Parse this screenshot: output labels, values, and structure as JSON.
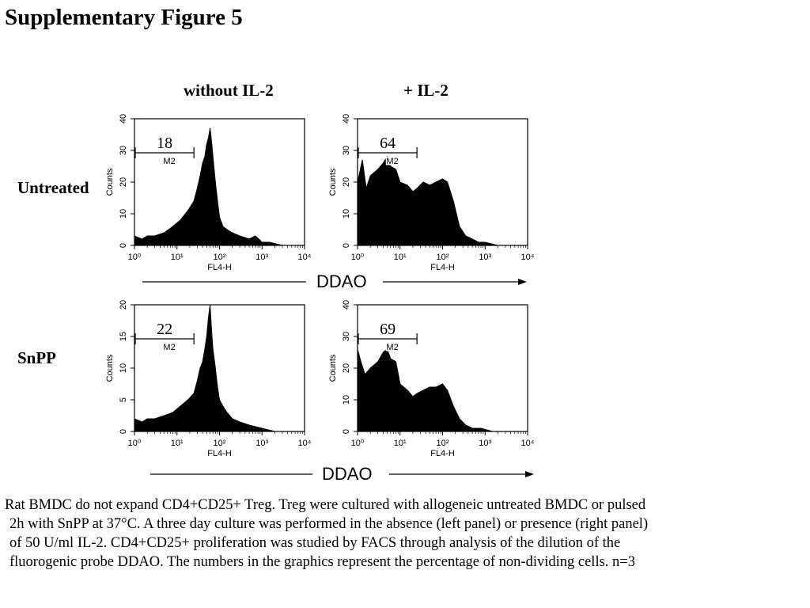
{
  "figure_title": "Supplementary Figure 5",
  "column_headers": [
    "without IL-2",
    "+ IL-2"
  ],
  "row_headers": [
    "Untreated",
    "SnPP"
  ],
  "arrow_label": "DDAO",
  "chart_data": [
    {
      "type": "area",
      "panel": "Untreated, without IL-2",
      "xlabel": "FL4-H",
      "ylabel": "Counts",
      "xscale": "log",
      "xlim": [
        1,
        10000
      ],
      "ylim": [
        0,
        40
      ],
      "x_ticks": [
        "10⁰",
        "10¹",
        "10²",
        "10³",
        "10⁴"
      ],
      "y_ticks": [
        "0",
        "10",
        "20",
        "30",
        "40"
      ],
      "gate_label": "M2",
      "gate_range": [
        1,
        25
      ],
      "value_label": "18",
      "x": [
        1,
        1.5,
        2,
        3,
        5,
        8,
        12,
        18,
        25,
        30,
        35,
        40,
        45,
        50,
        55,
        60,
        65,
        70,
        80,
        90,
        100,
        120,
        150,
        200,
        300,
        500,
        700,
        1000,
        1500,
        3000,
        10000
      ],
      "y": [
        3,
        2,
        3,
        3,
        4,
        6,
        8,
        11,
        14,
        18,
        22,
        26,
        28,
        32,
        34,
        37,
        33,
        28,
        20,
        14,
        9,
        6,
        5,
        4,
        3,
        2,
        3,
        1,
        1,
        0,
        0
      ]
    },
    {
      "type": "area",
      "panel": "Untreated, + IL-2",
      "xlabel": "FL4-H",
      "ylabel": "Counts",
      "xscale": "log",
      "xlim": [
        1,
        10000
      ],
      "ylim": [
        0,
        40
      ],
      "x_ticks": [
        "10⁰",
        "10¹",
        "10²",
        "10³",
        "10⁴"
      ],
      "y_ticks": [
        "0",
        "10",
        "20",
        "30",
        "40"
      ],
      "gate_label": "M2",
      "gate_range": [
        1,
        25
      ],
      "value_label": "64",
      "x": [
        1,
        1.3,
        1.6,
        2,
        3,
        4,
        5,
        6,
        8,
        10,
        15,
        20,
        25,
        35,
        50,
        70,
        100,
        130,
        180,
        250,
        350,
        500,
        700,
        1000,
        2000,
        10000
      ],
      "y": [
        20,
        27,
        18,
        22,
        24,
        26,
        28,
        25,
        24,
        20,
        19,
        17,
        18,
        20,
        19,
        20,
        21,
        20,
        14,
        6,
        3,
        2,
        1,
        1,
        0,
        0
      ]
    },
    {
      "type": "area",
      "panel": "SnPP, without IL-2",
      "xlabel": "FL4-H",
      "ylabel": "Counts",
      "xscale": "log",
      "xlim": [
        1,
        10000
      ],
      "ylim": [
        0,
        20
      ],
      "x_ticks": [
        "10⁰",
        "10¹",
        "10²",
        "10³",
        "10⁴"
      ],
      "y_ticks": [
        "0",
        "5",
        "10",
        "15",
        "20"
      ],
      "gate_label": "M2",
      "gate_range": [
        1,
        25
      ],
      "value_label": "22",
      "x": [
        1,
        1.5,
        2,
        3,
        5,
        8,
        12,
        18,
        25,
        30,
        35,
        40,
        45,
        50,
        55,
        60,
        65,
        70,
        80,
        90,
        100,
        120,
        150,
        200,
        300,
        500,
        1000,
        2000,
        10000
      ],
      "y": [
        2,
        1.5,
        2,
        2,
        2.5,
        3,
        4,
        5,
        6,
        8,
        10,
        11,
        13,
        15,
        18,
        20,
        16,
        13,
        10,
        7,
        5,
        4,
        3,
        2,
        1.5,
        1,
        0.5,
        0,
        0
      ]
    },
    {
      "type": "area",
      "panel": "SnPP, + IL-2",
      "xlabel": "FL4-H",
      "ylabel": "Counts",
      "xscale": "log",
      "xlim": [
        1,
        10000
      ],
      "ylim": [
        0,
        40
      ],
      "x_ticks": [
        "10⁰",
        "10¹",
        "10²",
        "10³",
        "10⁴"
      ],
      "y_ticks": [
        "0",
        "10",
        "20",
        "30",
        "40"
      ],
      "gate_label": "M2",
      "gate_range": [
        1,
        25
      ],
      "value_label": "69",
      "x": [
        1,
        1.2,
        1.5,
        2,
        3,
        4,
        5,
        6,
        8,
        10,
        15,
        20,
        25,
        35,
        50,
        70,
        100,
        130,
        180,
        250,
        350,
        500,
        800,
        1500,
        10000
      ],
      "y": [
        26,
        22,
        18,
        20,
        22,
        25,
        26,
        23,
        22,
        15,
        13,
        11,
        12,
        13,
        14,
        14,
        15,
        13,
        8,
        4,
        2,
        1,
        1,
        0,
        0
      ]
    }
  ],
  "caption_lines": [
    "Rat BMDC do not expand CD4+CD25+ Treg. Treg were cultured with allogeneic untreated BMDC or pulsed",
    "2h with SnPP at 37°C. A three day culture was performed in the absence (left panel) or presence (right panel)",
    "of 50 U/ml IL-2. CD4+CD25+ proliferation was studied by FACS through analysis of the dilution of the",
    "fluorogenic probe DDAO. The numbers in the graphics represent the percentage of non-dividing cells. n=3"
  ]
}
